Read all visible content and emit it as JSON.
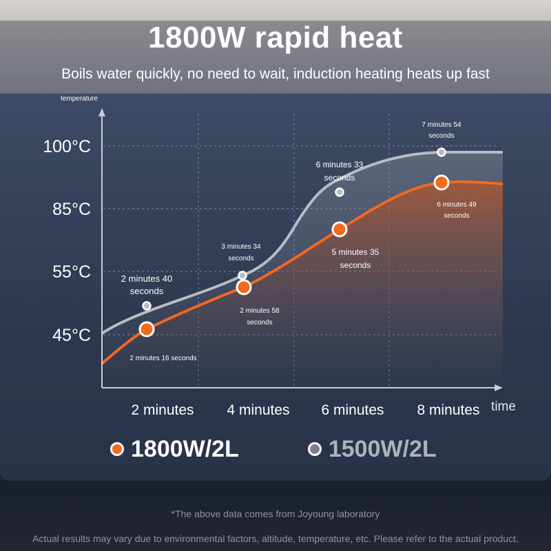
{
  "header": {
    "title": "1800W rapid heat",
    "subtitle": "Boils water quickly, no need to wait, induction heating heats up fast"
  },
  "colors": {
    "series_1800": "#f06a1f",
    "series_1500": "#b9bcc4",
    "grid": "#8d97ad",
    "axis": "#c9ced8"
  },
  "chart_data": {
    "type": "line",
    "ylabel": "temperature",
    "xlabel": "time",
    "x_ticks": [
      {
        "value": 2,
        "label": "2 minutes"
      },
      {
        "value": 4,
        "label": "4 minutes"
      },
      {
        "value": 6,
        "label": "6 minutes"
      },
      {
        "value": 8,
        "label": "8 minutes"
      }
    ],
    "y_ticks": [
      {
        "value": 45,
        "label": "45°C"
      },
      {
        "value": 55,
        "label": "55°C"
      },
      {
        "value": 85,
        "label": "85°C"
      },
      {
        "value": 100,
        "label": "100°C"
      }
    ],
    "series": [
      {
        "name": "1800W/2L",
        "color_key": "series_1800",
        "points": [
          {
            "label": "2 minutes 16 seconds",
            "label_lines": [
              "2 minutes 16 seconds"
            ]
          },
          {
            "label": "2 minutes 58 seconds",
            "label_lines": [
              "2 minutes 58",
              "seconds"
            ]
          },
          {
            "label": "5 minutes 35 seconds",
            "label_lines": [
              "5 minutes 35",
              "seconds"
            ]
          },
          {
            "label": "6 minutes 49 seconds",
            "label_lines": [
              "6 minutes 49",
              "seconds"
            ]
          }
        ]
      },
      {
        "name": "1500W/2L",
        "color_key": "series_1500",
        "points": [
          {
            "label": "2 minutes 40 seconds",
            "label_lines": [
              "2 minutes 40",
              "seconds"
            ]
          },
          {
            "label": "3 minutes 34 seconds",
            "label_lines": [
              "3 minutes 34",
              "seconds"
            ]
          },
          {
            "label": "6 minutes 33 seconds",
            "label_lines": [
              "6 minutes 33",
              "seconds"
            ]
          },
          {
            "label": "7 minutes 54 seconds",
            "label_lines": [
              "7 minutes 54",
              "seconds"
            ]
          }
        ]
      }
    ]
  },
  "legend": {
    "item_1800": "1800W/2L",
    "item_1500": "1500W/2L"
  },
  "footnotes": {
    "source": "*The above data comes from Joyoung laboratory",
    "disclaimer": "Actual results may vary due to environmental factors, altitude, temperature, etc. Please refer to the actual product."
  }
}
